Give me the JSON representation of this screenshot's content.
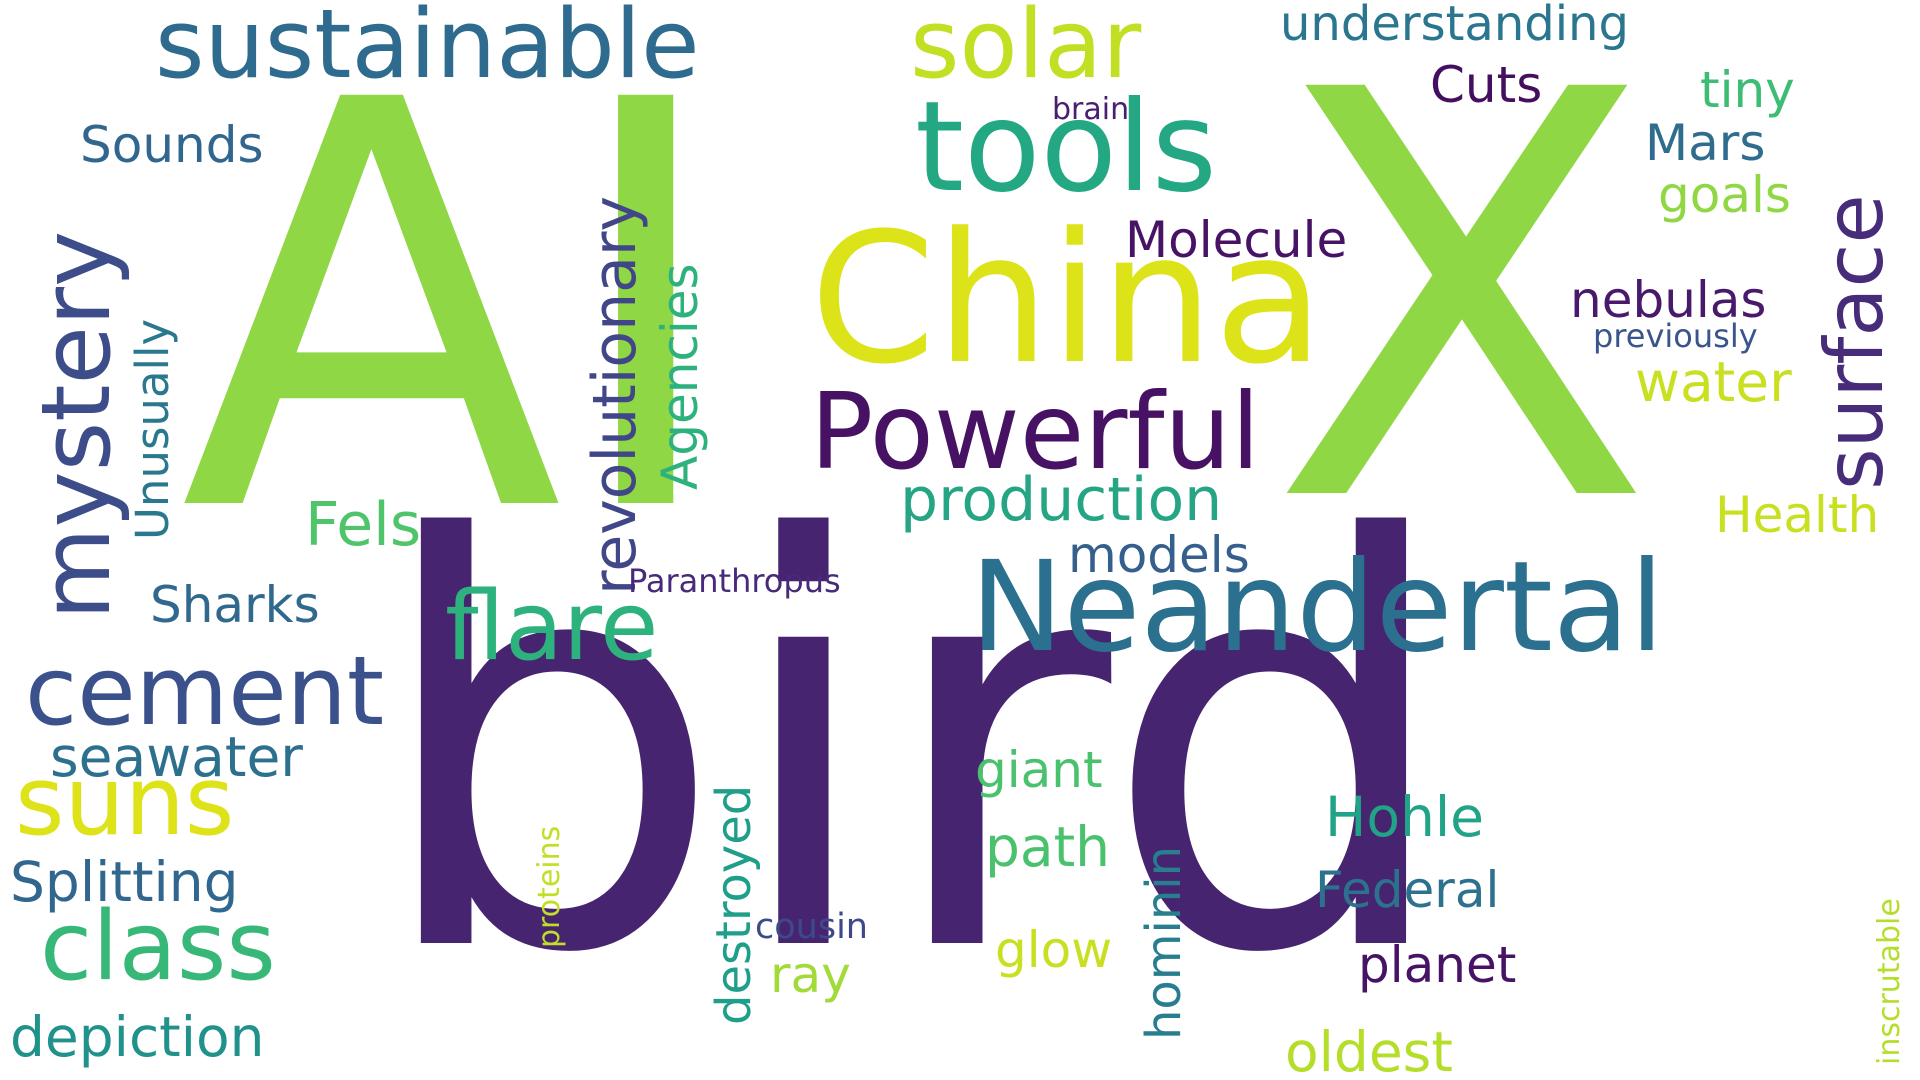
{
  "words": [
    {
      "text": "AI",
      "color": "#8fd744",
      "orientation": "horizontal"
    },
    {
      "text": "X",
      "color": "#8fd744",
      "orientation": "horizontal"
    },
    {
      "text": "bird",
      "color": "#46246f",
      "orientation": "horizontal"
    },
    {
      "text": "China",
      "color": "#dce319",
      "orientation": "horizontal"
    },
    {
      "text": "tools",
      "color": "#23a883",
      "orientation": "horizontal"
    },
    {
      "text": "Neandertal",
      "color": "#2b708e",
      "orientation": "horizontal"
    },
    {
      "text": "Powerful",
      "color": "#471164",
      "orientation": "horizontal"
    },
    {
      "text": "sustainable",
      "color": "#2f6b8e",
      "orientation": "horizontal"
    },
    {
      "text": "solar",
      "color": "#c2df23",
      "orientation": "horizontal"
    },
    {
      "text": "mystery",
      "color": "#3d4d8a",
      "orientation": "vertical"
    },
    {
      "text": "surface",
      "color": "#472c7a",
      "orientation": "vertical"
    },
    {
      "text": "flare",
      "color": "#2db27d",
      "orientation": "horizontal"
    },
    {
      "text": "cement",
      "color": "#3b518b",
      "orientation": "horizontal"
    },
    {
      "text": "suns",
      "color": "#dde318",
      "orientation": "horizontal"
    },
    {
      "text": "class",
      "color": "#37b878",
      "orientation": "horizontal"
    },
    {
      "text": "revolutionary",
      "color": "#404688",
      "orientation": "vertical"
    },
    {
      "text": "production",
      "color": "#25a584",
      "orientation": "horizontal"
    },
    {
      "text": "understanding",
      "color": "#2a768e",
      "orientation": "horizontal"
    },
    {
      "text": "Sounds",
      "color": "#31668e",
      "orientation": "horizontal"
    },
    {
      "text": "Unusually",
      "color": "#2a788e",
      "orientation": "vertical"
    },
    {
      "text": "Agencies",
      "color": "#2db27d",
      "orientation": "vertical"
    },
    {
      "text": "Molecule",
      "color": "#471365",
      "orientation": "horizontal"
    },
    {
      "text": "Cuts",
      "color": "#440f5e",
      "orientation": "horizontal"
    },
    {
      "text": "tiny",
      "color": "#3dbc74",
      "orientation": "horizontal"
    },
    {
      "text": "Mars",
      "color": "#2f6c8e",
      "orientation": "horizontal"
    },
    {
      "text": "goals",
      "color": "#90d743",
      "orientation": "horizontal"
    },
    {
      "text": "brain",
      "color": "#482071",
      "orientation": "horizontal"
    },
    {
      "text": "nebulas",
      "color": "#481a6c",
      "orientation": "horizontal"
    },
    {
      "text": "previously",
      "color": "#39558c",
      "orientation": "horizontal"
    },
    {
      "text": "water",
      "color": "#c8e020",
      "orientation": "horizontal"
    },
    {
      "text": "Health",
      "color": "#c8e020",
      "orientation": "horizontal"
    },
    {
      "text": "Fels",
      "color": "#50c46a",
      "orientation": "horizontal"
    },
    {
      "text": "models",
      "color": "#355f8d",
      "orientation": "horizontal"
    },
    {
      "text": "Sharks",
      "color": "#31688e",
      "orientation": "horizontal"
    },
    {
      "text": "Paranthropus",
      "color": "#472a7a",
      "orientation": "horizontal"
    },
    {
      "text": "seawater",
      "color": "#2d708e",
      "orientation": "horizontal"
    },
    {
      "text": "Splitting",
      "color": "#31668e",
      "orientation": "horizontal"
    },
    {
      "text": "depiction",
      "color": "#21918c",
      "orientation": "horizontal"
    },
    {
      "text": "proteins",
      "color": "#c0df25",
      "orientation": "vertical"
    },
    {
      "text": "destroyed",
      "color": "#1f9e89",
      "orientation": "vertical"
    },
    {
      "text": "cousin",
      "color": "#3e4989",
      "orientation": "horizontal"
    },
    {
      "text": "ray",
      "color": "#a2da37",
      "orientation": "horizontal"
    },
    {
      "text": "giant",
      "color": "#4ac16d",
      "orientation": "horizontal"
    },
    {
      "text": "path",
      "color": "#4ac16d",
      "orientation": "horizontal"
    },
    {
      "text": "glow",
      "color": "#c8e020",
      "orientation": "horizontal"
    },
    {
      "text": "hominin",
      "color": "#287d8e",
      "orientation": "vertical"
    },
    {
      "text": "Hohle",
      "color": "#20a386",
      "orientation": "horizontal"
    },
    {
      "text": "Federal",
      "color": "#2c728e",
      "orientation": "horizontal"
    },
    {
      "text": "planet",
      "color": "#471365",
      "orientation": "horizontal"
    },
    {
      "text": "oldest",
      "color": "#b5de2b",
      "orientation": "horizontal"
    },
    {
      "text": "inscrutable",
      "color": "#b5de2b",
      "orientation": "vertical"
    }
  ]
}
